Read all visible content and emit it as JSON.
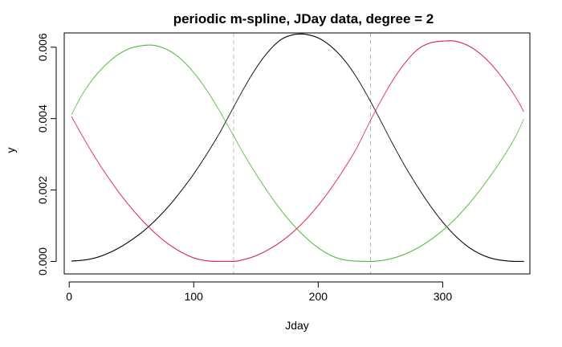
{
  "chart_data": {
    "type": "line",
    "title": "periodic m-spline, JDay data, degree = 2",
    "xlabel": "Jday",
    "ylabel": "y",
    "xlim": [
      -4,
      370
    ],
    "ylim": [
      -0.00035,
      0.0064
    ],
    "x_ticks": [
      0,
      100,
      200,
      300
    ],
    "x_tick_labels": [
      "0",
      "100",
      "200",
      "300"
    ],
    "y_ticks": [
      0,
      0.002,
      0.004,
      0.006
    ],
    "y_tick_labels": [
      "0.000",
      "0.002",
      "0.004",
      "0.006"
    ],
    "grid": false,
    "legend": "none",
    "marker_size": 1,
    "knot_lines": {
      "x": [
        132,
        242
      ],
      "color": "#bbbbbb",
      "style": "dashed"
    },
    "series": [
      {
        "color": "#000000",
        "x": [
          2,
          10,
          20,
          30,
          40,
          50,
          60,
          70,
          80,
          90,
          100,
          110,
          120,
          132,
          140,
          150,
          160,
          170,
          180,
          187,
          190,
          200,
          210,
          220,
          230,
          242,
          250,
          260,
          270,
          280,
          290,
          300,
          310,
          320,
          330,
          340,
          350,
          360,
          365
        ],
        "y": [
          1e-05,
          3e-05,
          9e-05,
          0.00021,
          0.00038,
          0.0006,
          0.00086,
          0.00118,
          0.00155,
          0.00198,
          0.00245,
          0.00298,
          0.00355,
          0.00432,
          0.00483,
          0.00541,
          0.00588,
          0.00621,
          0.00635,
          0.00637,
          0.00636,
          0.00626,
          0.00603,
          0.00568,
          0.0052,
          0.00448,
          0.00395,
          0.00328,
          0.00265,
          0.00208,
          0.00156,
          0.0011,
          0.00072,
          0.00042,
          0.00021,
          8e-05,
          2e-05,
          0.0,
          0.0
        ]
      },
      {
        "color": "#55bb44",
        "x": [
          2,
          10,
          20,
          30,
          40,
          50,
          60,
          65,
          70,
          80,
          90,
          100,
          110,
          120,
          132,
          140,
          150,
          160,
          170,
          180,
          190,
          200,
          210,
          220,
          230,
          242,
          250,
          260,
          270,
          280,
          290,
          300,
          310,
          320,
          330,
          340,
          350,
          360,
          365
        ],
        "y": [
          0.00412,
          0.00465,
          0.00515,
          0.00553,
          0.00581,
          0.00598,
          0.00605,
          0.00606,
          0.00604,
          0.00591,
          0.00566,
          0.00529,
          0.00482,
          0.00426,
          0.00352,
          0.00302,
          0.00245,
          0.00192,
          0.00144,
          0.00102,
          0.00067,
          0.00038,
          0.00017,
          5e-05,
          1e-05,
          0.0,
          2e-05,
          9e-05,
          0.00021,
          0.00038,
          0.0006,
          0.00087,
          0.00119,
          0.00157,
          0.002,
          0.00248,
          0.003,
          0.0036,
          0.00398
        ]
      },
      {
        "color": "#dd2255",
        "x": [
          2,
          10,
          20,
          30,
          40,
          50,
          60,
          70,
          80,
          90,
          100,
          110,
          120,
          132,
          140,
          150,
          160,
          170,
          180,
          190,
          200,
          210,
          220,
          230,
          242,
          250,
          260,
          270,
          280,
          290,
          300,
          307,
          310,
          320,
          330,
          340,
          350,
          360,
          365
        ],
        "y": [
          0.00405,
          0.00355,
          0.00296,
          0.00242,
          0.00193,
          0.00149,
          0.0011,
          0.00076,
          0.00048,
          0.00026,
          0.0001,
          2e-05,
          0.0,
          0.0,
          5e-05,
          0.00016,
          0.00033,
          0.00055,
          0.00083,
          0.00117,
          0.00157,
          0.00203,
          0.00255,
          0.00312,
          0.00395,
          0.00448,
          0.00508,
          0.00557,
          0.00594,
          0.00612,
          0.00617,
          0.00618,
          0.00617,
          0.00605,
          0.00582,
          0.00548,
          0.00504,
          0.00452,
          0.0042
        ]
      }
    ]
  }
}
